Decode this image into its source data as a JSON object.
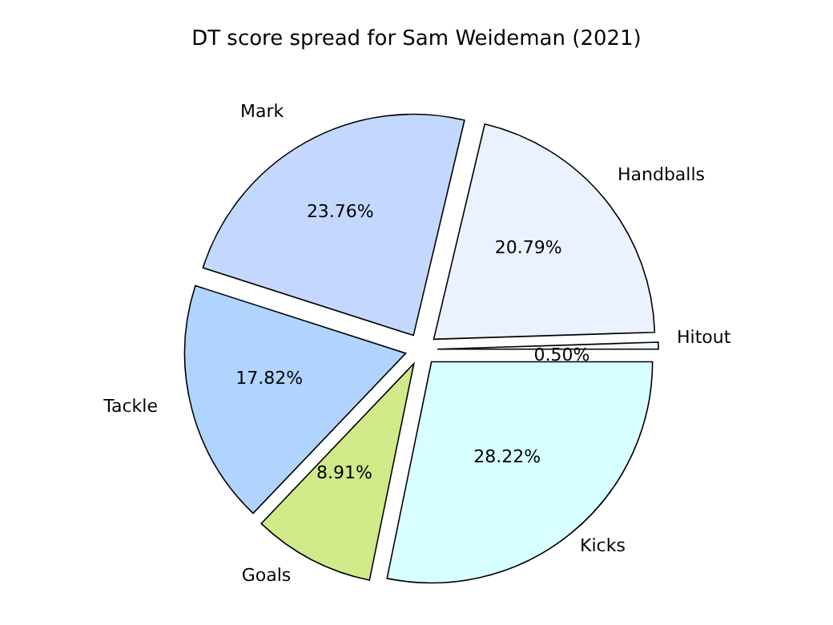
{
  "chart_data": {
    "type": "pie",
    "title": "DT score spread for Sam Weideman (2021)",
    "categories": [
      "Hitout",
      "Handballs",
      "Mark",
      "Tackle",
      "Goals",
      "Kicks"
    ],
    "values": [
      0.5,
      20.79,
      23.76,
      17.82,
      8.91,
      28.22
    ],
    "value_labels": [
      "0.50%",
      "20.79%",
      "23.76%",
      "17.82%",
      "8.91%",
      "28.22%"
    ],
    "colors": [
      "#f0f8ff",
      "#eaf2ff",
      "#c4d8ff",
      "#b0d4ff",
      "#d0ea8a",
      "#d8ffff"
    ],
    "legend": false
  }
}
